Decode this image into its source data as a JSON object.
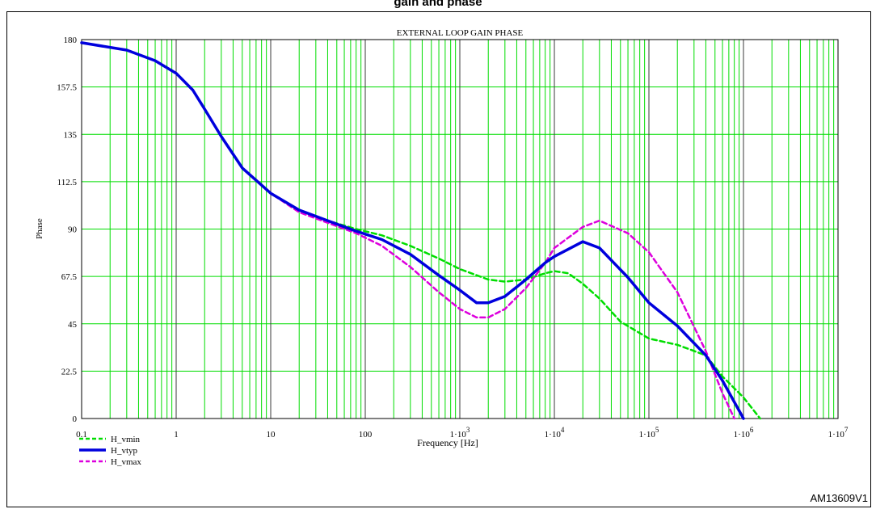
{
  "page": {
    "header_title_fragment": "gain and phase",
    "figure_code": "AM13609V1"
  },
  "chart_data": {
    "type": "line",
    "title": "EXTERNAL LOOP GAIN PHASE",
    "xlabel": "Frequency [Hz]",
    "ylabel": "Phase",
    "x_scale": "log",
    "xlim": [
      0.1,
      10000000
    ],
    "ylim": [
      0,
      180
    ],
    "grid": true,
    "legend_position": "bottom-left",
    "x_ticks": [
      {
        "value": 0.1,
        "label": "0.1"
      },
      {
        "value": 1,
        "label": "1"
      },
      {
        "value": 10,
        "label": "10"
      },
      {
        "value": 100,
        "label": "100"
      },
      {
        "value": 1000,
        "label": "1·10",
        "exp": "3"
      },
      {
        "value": 10000,
        "label": "1·10",
        "exp": "4"
      },
      {
        "value": 100000,
        "label": "1·10",
        "exp": "5"
      },
      {
        "value": 1000000,
        "label": "1·10",
        "exp": "6"
      },
      {
        "value": 10000000,
        "label": "1·10",
        "exp": "7"
      }
    ],
    "y_ticks": [
      {
        "value": 0,
        "label": "0"
      },
      {
        "value": 22.5,
        "label": "22.5"
      },
      {
        "value": 45,
        "label": "45"
      },
      {
        "value": 67.5,
        "label": "67.5"
      },
      {
        "value": 90,
        "label": "90"
      },
      {
        "value": 112.5,
        "label": "112.5"
      },
      {
        "value": 135,
        "label": "135"
      },
      {
        "value": 157.5,
        "label": "157.5"
      },
      {
        "value": 180,
        "label": "180"
      }
    ],
    "series": [
      {
        "name": "H_vmin",
        "color": "#00dd00",
        "style": "dashed",
        "points": [
          [
            0.1,
            178.5
          ],
          [
            0.3,
            175
          ],
          [
            0.6,
            170
          ],
          [
            1,
            164
          ],
          [
            1.5,
            156
          ],
          [
            2,
            147
          ],
          [
            3,
            134
          ],
          [
            5,
            119
          ],
          [
            10,
            107
          ],
          [
            20,
            99
          ],
          [
            40,
            94
          ],
          [
            80,
            90
          ],
          [
            150,
            87
          ],
          [
            300,
            82
          ],
          [
            600,
            76
          ],
          [
            1000,
            71
          ],
          [
            2000,
            66
          ],
          [
            3000,
            65
          ],
          [
            5000,
            66
          ],
          [
            8000,
            69
          ],
          [
            10000,
            70
          ],
          [
            14000,
            69
          ],
          [
            20000,
            64
          ],
          [
            30000,
            57
          ],
          [
            50000,
            46
          ],
          [
            100000,
            38
          ],
          [
            200000,
            35
          ],
          [
            400000,
            30
          ],
          [
            600000,
            20
          ],
          [
            1000000,
            10
          ],
          [
            1500000,
            0
          ]
        ]
      },
      {
        "name": "H_vtyp",
        "color": "#0000dd",
        "style": "solid",
        "points": [
          [
            0.1,
            178.5
          ],
          [
            0.3,
            175
          ],
          [
            0.6,
            170
          ],
          [
            1,
            164
          ],
          [
            1.5,
            156
          ],
          [
            2,
            147
          ],
          [
            3,
            134
          ],
          [
            5,
            119
          ],
          [
            10,
            107
          ],
          [
            20,
            99
          ],
          [
            40,
            94
          ],
          [
            80,
            89
          ],
          [
            150,
            85
          ],
          [
            300,
            78
          ],
          [
            600,
            68
          ],
          [
            1000,
            61
          ],
          [
            1500,
            55
          ],
          [
            2000,
            55
          ],
          [
            3000,
            58
          ],
          [
            5000,
            66
          ],
          [
            8000,
            74
          ],
          [
            10000,
            77
          ],
          [
            20000,
            84
          ],
          [
            30000,
            81
          ],
          [
            60000,
            67
          ],
          [
            100000,
            55
          ],
          [
            200000,
            44
          ],
          [
            400000,
            30
          ],
          [
            600000,
            18
          ],
          [
            1000000,
            0
          ]
        ]
      },
      {
        "name": "H_vmax",
        "color": "#dd00dd",
        "style": "dashed",
        "points": [
          [
            0.1,
            178.5
          ],
          [
            0.3,
            175
          ],
          [
            0.6,
            170
          ],
          [
            1,
            164
          ],
          [
            1.5,
            156
          ],
          [
            2,
            147
          ],
          [
            3,
            134
          ],
          [
            5,
            119
          ],
          [
            10,
            107
          ],
          [
            20,
            98
          ],
          [
            40,
            93
          ],
          [
            80,
            88
          ],
          [
            150,
            82
          ],
          [
            300,
            72
          ],
          [
            600,
            60
          ],
          [
            1000,
            52
          ],
          [
            1500,
            48
          ],
          [
            2000,
            48
          ],
          [
            3000,
            52
          ],
          [
            5000,
            62
          ],
          [
            8000,
            74
          ],
          [
            10000,
            81
          ],
          [
            20000,
            91
          ],
          [
            30000,
            94
          ],
          [
            60000,
            88
          ],
          [
            100000,
            79
          ],
          [
            200000,
            60
          ],
          [
            400000,
            32
          ],
          [
            600000,
            12
          ],
          [
            800000,
            0
          ]
        ]
      }
    ]
  }
}
